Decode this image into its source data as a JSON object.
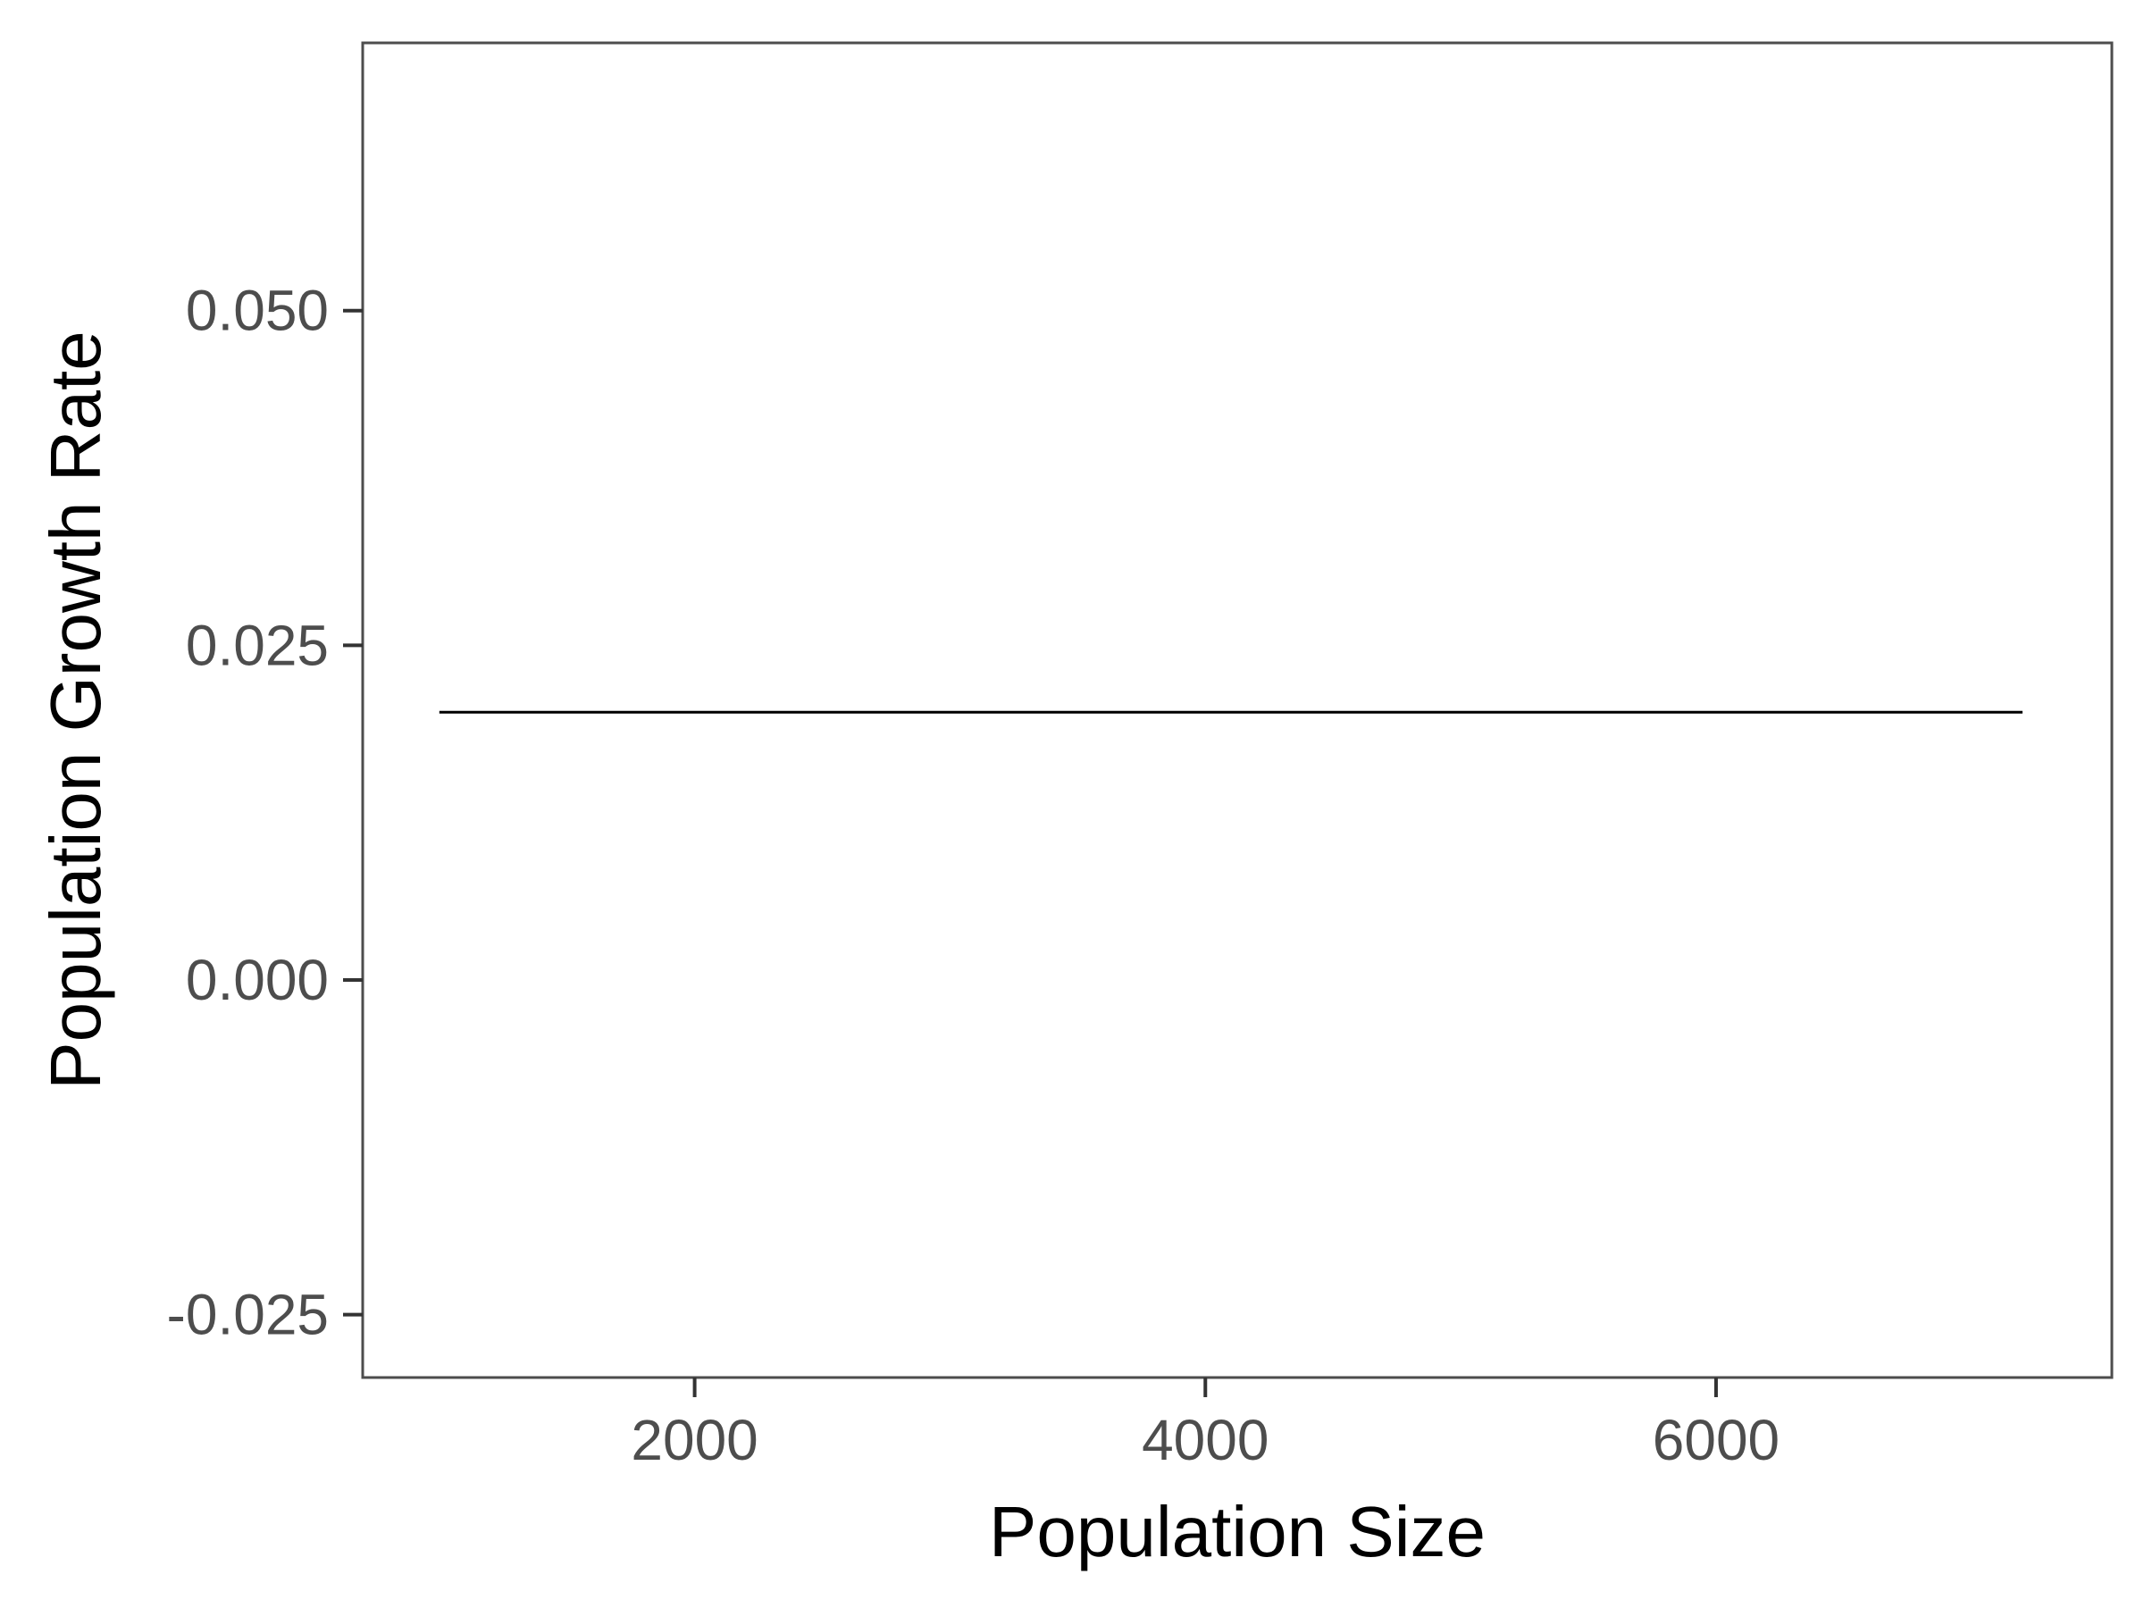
{
  "chart_data": {
    "type": "line",
    "title": "",
    "xlabel": "Population Size",
    "ylabel": "Population Growth Rate",
    "xlim": [
      700,
      7550
    ],
    "ylim": [
      -0.0297,
      0.07
    ],
    "x_ticks": [
      {
        "value": 2000,
        "label": "2000"
      },
      {
        "value": 4000,
        "label": "4000"
      },
      {
        "value": 6000,
        "label": "6000"
      }
    ],
    "y_ticks": [
      {
        "value": 0.05,
        "label": "0.050"
      },
      {
        "value": 0.025,
        "label": "0.025"
      },
      {
        "value": 0,
        "label": "0.000"
      },
      {
        "value": -0.025,
        "label": "-0.025"
      }
    ],
    "grid": false,
    "legend": "none",
    "series": [
      {
        "color": "#000000",
        "x": [
          1000,
          7200
        ],
        "y": [
          0.02,
          0.02
        ]
      }
    ]
  }
}
